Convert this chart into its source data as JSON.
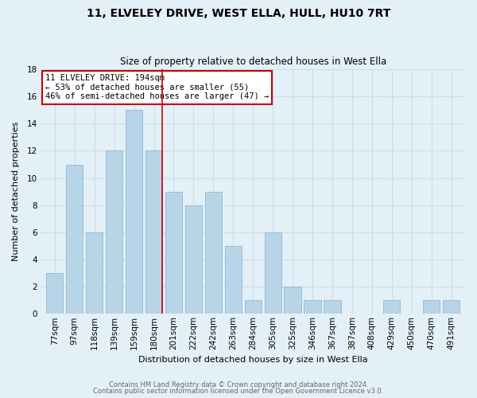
{
  "title": "11, ELVELEY DRIVE, WEST ELLA, HULL, HU10 7RT",
  "subtitle": "Size of property relative to detached houses in West Ella",
  "xlabel": "Distribution of detached houses by size in West Ella",
  "ylabel": "Number of detached properties",
  "footer_line1": "Contains HM Land Registry data © Crown copyright and database right 2024.",
  "footer_line2": "Contains public sector information licensed under the Open Government Licence v3.0.",
  "bin_labels": [
    "77sqm",
    "97sqm",
    "118sqm",
    "139sqm",
    "159sqm",
    "180sqm",
    "201sqm",
    "222sqm",
    "242sqm",
    "263sqm",
    "284sqm",
    "305sqm",
    "325sqm",
    "346sqm",
    "367sqm",
    "387sqm",
    "408sqm",
    "429sqm",
    "450sqm",
    "470sqm",
    "491sqm"
  ],
  "bar_heights": [
    3,
    11,
    6,
    12,
    15,
    12,
    9,
    8,
    9,
    5,
    1,
    6,
    2,
    1,
    1,
    0,
    0,
    1,
    0,
    1,
    1
  ],
  "bar_color": "#b8d4e8",
  "highlight_bar_index": 5,
  "red_line_x": 5.5,
  "annotation_text": "11 ELVELEY DRIVE: 194sqm\n← 53% of detached houses are smaller (55)\n46% of semi-detached houses are larger (47) →",
  "annotation_box_color": "#ffffff",
  "annotation_box_edge_color": "#cc0000",
  "ylim": [
    0,
    18
  ],
  "yticks": [
    0,
    2,
    4,
    6,
    8,
    10,
    12,
    14,
    16,
    18
  ],
  "grid_color": "#ccdde8",
  "background_color": "#e4f0f8",
  "title_fontsize": 10,
  "subtitle_fontsize": 8.5,
  "axis_label_fontsize": 8,
  "tick_fontsize": 7.5,
  "annotation_fontsize": 7.5,
  "footer_fontsize": 6,
  "footer_color": "#666666"
}
